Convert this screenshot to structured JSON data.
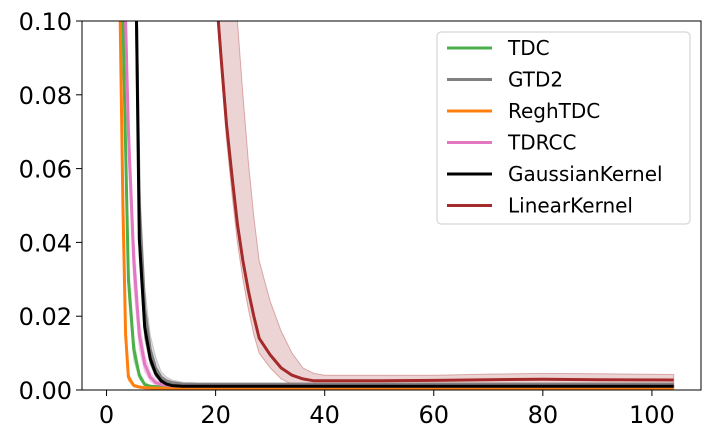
{
  "chart_data": {
    "type": "line",
    "title": "",
    "xlabel": "",
    "ylabel": "",
    "xlim": [
      -4.5,
      109
    ],
    "ylim": [
      0,
      0.1
    ],
    "xticks": [
      0,
      20,
      40,
      60,
      80,
      100
    ],
    "xtick_labels": [
      "0",
      "20",
      "40",
      "60",
      "80",
      "100"
    ],
    "yticks": [
      0,
      0.02,
      0.04,
      0.06,
      0.08,
      0.1
    ],
    "ytick_labels": [
      "0.00",
      "0.02",
      "0.04",
      "0.06",
      "0.08",
      "0.10"
    ],
    "grid": false,
    "legend_position": "top-right",
    "series": [
      {
        "name": "TDC",
        "color": "#4daf4a",
        "band_alpha": 0.2,
        "x": [
          3,
          4,
          5,
          6,
          7,
          8,
          10,
          15,
          30,
          60,
          104
        ],
        "y": [
          0.1,
          0.03,
          0.011,
          0.004,
          0.0015,
          0.001,
          0.0008,
          0.0008,
          0.0008,
          0.0008,
          0.0008
        ],
        "lower": [
          0.1,
          0.025,
          0.008,
          0.003,
          0.001,
          0.0008,
          0.0006,
          0.0006,
          0.0006,
          0.0006,
          0.0006
        ],
        "upper": [
          0.1,
          0.035,
          0.014,
          0.005,
          0.002,
          0.0013,
          0.001,
          0.001,
          0.001,
          0.001,
          0.001
        ]
      },
      {
        "name": "GTD2",
        "color": "#808080",
        "band_alpha": 0.25,
        "x": [
          5.5,
          6,
          7,
          8,
          9,
          10,
          11,
          12,
          14,
          17,
          25,
          40,
          60,
          80,
          104
        ],
        "y": [
          0.1,
          0.05,
          0.022,
          0.011,
          0.006,
          0.0035,
          0.0025,
          0.002,
          0.0016,
          0.0015,
          0.0015,
          0.0015,
          0.0015,
          0.0015,
          0.0015
        ],
        "lower": [
          0.1,
          0.042,
          0.017,
          0.008,
          0.004,
          0.0025,
          0.0018,
          0.0014,
          0.0011,
          0.001,
          0.001,
          0.001,
          0.001,
          0.001,
          0.001
        ],
        "upper": [
          0.1,
          0.058,
          0.028,
          0.015,
          0.009,
          0.005,
          0.0035,
          0.0027,
          0.0021,
          0.002,
          0.002,
          0.002,
          0.002,
          0.002,
          0.002
        ]
      },
      {
        "name": "ReghTDC",
        "color": "#ff7f0e",
        "band_alpha": 0.2,
        "x": [
          2.5,
          3,
          3.5,
          4,
          5,
          6,
          7,
          10,
          30,
          60,
          104
        ],
        "y": [
          0.1,
          0.05,
          0.015,
          0.0035,
          0.0012,
          0.0008,
          0.0006,
          0.0005,
          0.0005,
          0.0005,
          0.0005
        ],
        "lower": [
          0.1,
          0.045,
          0.012,
          0.0025,
          0.0008,
          0.0005,
          0.0004,
          0.0003,
          0.0003,
          0.0003,
          0.0003
        ],
        "upper": [
          0.1,
          0.055,
          0.018,
          0.0045,
          0.0016,
          0.0011,
          0.0008,
          0.0007,
          0.0007,
          0.0007,
          0.0007
        ]
      },
      {
        "name": "TDRCC",
        "color": "#e377c2",
        "band_alpha": 0.25,
        "x": [
          3.5,
          4,
          5,
          6,
          7,
          8,
          9,
          10,
          12,
          15,
          30,
          60,
          104
        ],
        "y": [
          0.1,
          0.07,
          0.035,
          0.015,
          0.007,
          0.0035,
          0.002,
          0.0015,
          0.0011,
          0.001,
          0.001,
          0.001,
          0.001
        ],
        "lower": [
          0.1,
          0.062,
          0.028,
          0.011,
          0.005,
          0.0024,
          0.0013,
          0.001,
          0.0007,
          0.0006,
          0.0006,
          0.0006,
          0.0006
        ],
        "upper": [
          0.1,
          0.078,
          0.042,
          0.019,
          0.0095,
          0.0048,
          0.0028,
          0.002,
          0.0015,
          0.0014,
          0.0014,
          0.0014,
          0.0014
        ]
      },
      {
        "name": "GaussianKernel",
        "color": "#000000",
        "band_alpha": 0.2,
        "x": [
          5.5,
          6,
          7,
          8,
          9,
          10,
          11,
          12,
          14,
          17,
          25,
          40,
          60,
          80,
          104
        ],
        "y": [
          0.1,
          0.041,
          0.017,
          0.0085,
          0.0045,
          0.0025,
          0.0016,
          0.0012,
          0.001,
          0.001,
          0.001,
          0.001,
          0.001,
          0.001,
          0.001
        ],
        "lower": [
          0.1,
          0.036,
          0.014,
          0.007,
          0.0036,
          0.002,
          0.0012,
          0.0009,
          0.0007,
          0.0007,
          0.0007,
          0.0007,
          0.0007,
          0.0007,
          0.0007
        ],
        "upper": [
          0.1,
          0.046,
          0.02,
          0.01,
          0.0054,
          0.003,
          0.002,
          0.0015,
          0.0013,
          0.0013,
          0.0013,
          0.0013,
          0.0013,
          0.0013,
          0.0013
        ]
      },
      {
        "name": "LinearKernel",
        "color": "#a52a2a",
        "band_alpha": 0.2,
        "x": [
          20.5,
          21,
          22,
          23,
          24,
          25,
          26,
          27,
          28,
          30,
          32,
          34,
          36,
          38,
          40,
          45,
          50,
          60,
          70,
          80,
          90,
          104
        ],
        "y": [
          0.1,
          0.09,
          0.072,
          0.058,
          0.045,
          0.035,
          0.027,
          0.02,
          0.014,
          0.0095,
          0.006,
          0.004,
          0.003,
          0.0025,
          0.0025,
          0.0025,
          0.0025,
          0.0026,
          0.0028,
          0.0029,
          0.0028,
          0.0027
        ],
        "lower": [
          0.1,
          0.087,
          0.068,
          0.053,
          0.04,
          0.03,
          0.022,
          0.015,
          0.01,
          0.006,
          0.003,
          0.0015,
          0.001,
          0.0008,
          0.0008,
          0.0008,
          0.0009,
          0.001,
          0.0012,
          0.0012,
          0.0012,
          0.0012
        ],
        "upper": [
          0.1,
          0.1,
          0.1,
          0.1,
          0.1,
          0.08,
          0.062,
          0.047,
          0.035,
          0.024,
          0.016,
          0.01,
          0.006,
          0.0045,
          0.004,
          0.004,
          0.004,
          0.004,
          0.0043,
          0.0045,
          0.0044,
          0.0042
        ]
      }
    ]
  }
}
